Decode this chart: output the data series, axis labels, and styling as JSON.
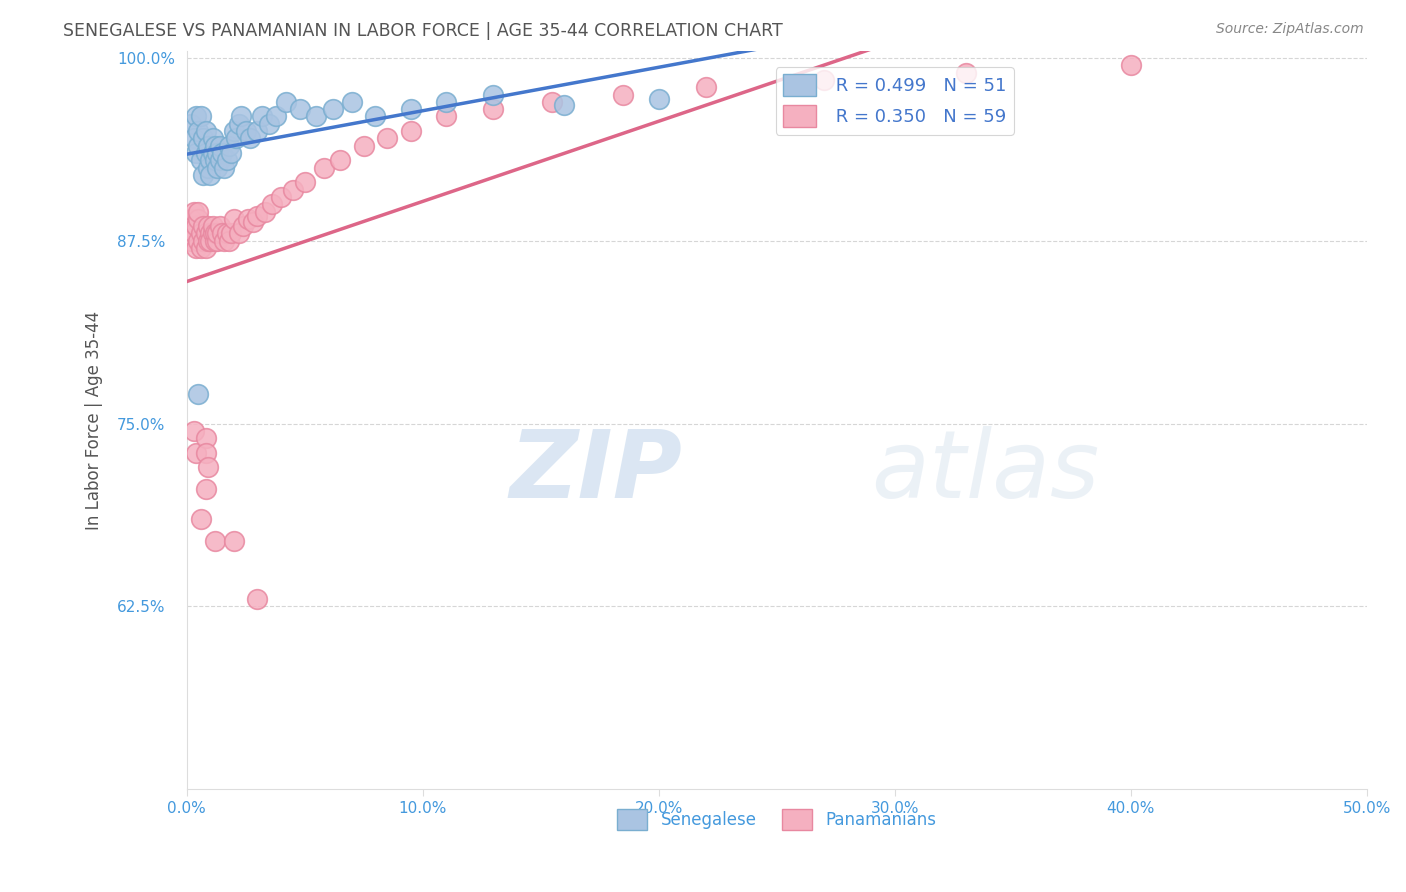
{
  "title": "SENEGALESE VS PANAMANIAN IN LABOR FORCE | AGE 35-44 CORRELATION CHART",
  "source_text": "Source: ZipAtlas.com",
  "ylabel": "In Labor Force | Age 35-44",
  "xlim": [
    0.0,
    0.5
  ],
  "ylim": [
    0.5,
    1.005
  ],
  "xticks": [
    0.0,
    0.1,
    0.2,
    0.3,
    0.4,
    0.5
  ],
  "yticks": [
    0.625,
    0.75,
    0.875,
    1.0
  ],
  "xtick_labels": [
    "0.0%",
    "10.0%",
    "20.0%",
    "30.0%",
    "40.0%",
    "50.0%"
  ],
  "ytick_labels": [
    "62.5%",
    "75.0%",
    "87.5%",
    "100.0%"
  ],
  "legend_labels": [
    "Senegalese",
    "Panamanians"
  ],
  "senegalese_color": "#aac4e2",
  "panamanian_color": "#f5b0c0",
  "senegalese_edge": "#7aaed0",
  "panamanian_edge": "#e888a0",
  "trend_blue": "#4477cc",
  "trend_pink": "#dd6688",
  "R_senegalese": "0.499",
  "N_senegalese": "51",
  "R_panamanian": "0.350",
  "N_panamanian": "59",
  "senegalese_x": [
    0.002,
    0.003,
    0.004,
    0.004,
    0.005,
    0.005,
    0.006,
    0.006,
    0.007,
    0.007,
    0.008,
    0.008,
    0.009,
    0.009,
    0.01,
    0.01,
    0.011,
    0.011,
    0.012,
    0.012,
    0.013,
    0.013,
    0.014,
    0.014,
    0.015,
    0.016,
    0.017,
    0.018,
    0.019,
    0.02,
    0.021,
    0.022,
    0.023,
    0.025,
    0.027,
    0.03,
    0.032,
    0.035,
    0.038,
    0.042,
    0.048,
    0.055,
    0.062,
    0.07,
    0.08,
    0.095,
    0.11,
    0.13,
    0.16,
    0.2,
    0.005
  ],
  "senegalese_y": [
    0.955,
    0.945,
    0.935,
    0.96,
    0.94,
    0.95,
    0.93,
    0.96,
    0.92,
    0.945,
    0.935,
    0.95,
    0.925,
    0.94,
    0.93,
    0.92,
    0.935,
    0.945,
    0.93,
    0.94,
    0.925,
    0.935,
    0.93,
    0.94,
    0.935,
    0.925,
    0.93,
    0.94,
    0.935,
    0.95,
    0.945,
    0.955,
    0.96,
    0.95,
    0.945,
    0.95,
    0.96,
    0.955,
    0.96,
    0.97,
    0.965,
    0.96,
    0.965,
    0.97,
    0.96,
    0.965,
    0.97,
    0.975,
    0.968,
    0.972,
    0.77
  ],
  "panamanian_x": [
    0.002,
    0.002,
    0.003,
    0.003,
    0.004,
    0.004,
    0.005,
    0.005,
    0.005,
    0.006,
    0.006,
    0.007,
    0.007,
    0.008,
    0.008,
    0.009,
    0.009,
    0.01,
    0.01,
    0.011,
    0.011,
    0.012,
    0.012,
    0.013,
    0.013,
    0.014,
    0.015,
    0.016,
    0.017,
    0.018,
    0.019,
    0.02,
    0.022,
    0.024,
    0.026,
    0.028,
    0.03,
    0.033,
    0.036,
    0.04,
    0.045,
    0.05,
    0.058,
    0.065,
    0.075,
    0.085,
    0.095,
    0.11,
    0.13,
    0.155,
    0.185,
    0.22,
    0.27,
    0.33,
    0.4,
    0.003,
    0.004,
    0.006,
    0.008
  ],
  "panamanian_y": [
    0.89,
    0.875,
    0.88,
    0.895,
    0.885,
    0.87,
    0.875,
    0.89,
    0.895,
    0.88,
    0.87,
    0.875,
    0.885,
    0.88,
    0.87,
    0.875,
    0.885,
    0.88,
    0.875,
    0.88,
    0.885,
    0.875,
    0.88,
    0.875,
    0.88,
    0.885,
    0.88,
    0.875,
    0.88,
    0.875,
    0.88,
    0.89,
    0.88,
    0.885,
    0.89,
    0.888,
    0.892,
    0.895,
    0.9,
    0.905,
    0.91,
    0.915,
    0.925,
    0.93,
    0.94,
    0.945,
    0.95,
    0.96,
    0.965,
    0.97,
    0.975,
    0.98,
    0.985,
    0.99,
    0.995,
    0.745,
    0.73,
    0.685,
    0.705
  ],
  "pan_outliers_x": [
    0.008,
    0.008,
    0.009,
    0.012,
    0.02,
    0.03
  ],
  "pan_outliers_y": [
    0.74,
    0.73,
    0.72,
    0.67,
    0.67,
    0.63
  ],
  "watermark_zip": "ZIP",
  "watermark_atlas": "atlas",
  "background_color": "#ffffff",
  "grid_color": "#cccccc",
  "title_color": "#555555",
  "axis_label_color": "#555555",
  "tick_color": "#4499dd",
  "legend_R_color": "#4477cc"
}
